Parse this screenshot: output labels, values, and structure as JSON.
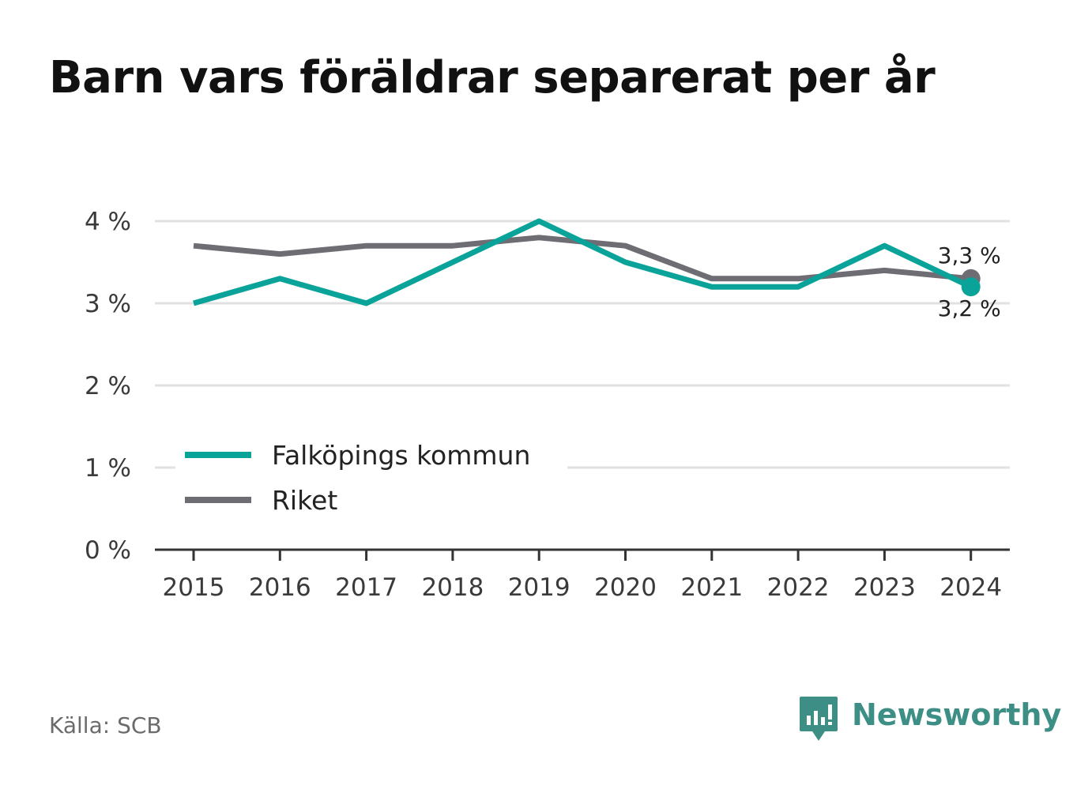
{
  "title": "Barn vars föräldrar separerat per år",
  "source": "Källa: SCB",
  "brand": {
    "name": "Newsworthy",
    "color": "#3d8f86",
    "icon": "newsworthy-logo-icon"
  },
  "colors": {
    "falkoping": "#0aa39a",
    "riket": "#6e6d73",
    "grid": "#e1e1e1",
    "axis": "#333333"
  },
  "chart_data": {
    "type": "line",
    "title": "Barn vars föräldrar separerat per år",
    "x": [
      "2015",
      "2016",
      "2017",
      "2018",
      "2019",
      "2020",
      "2021",
      "2022",
      "2023",
      "2024"
    ],
    "y_ticks": [
      "0 %",
      "1 %",
      "2 %",
      "3 %",
      "4 %"
    ],
    "ylim": [
      0,
      4
    ],
    "grid": true,
    "legend_position": "bottom-left",
    "series": [
      {
        "name": "Falköpings kommun",
        "color": "#0aa39a",
        "values": [
          3.0,
          3.3,
          3.0,
          3.5,
          4.0,
          3.5,
          3.2,
          3.2,
          3.7,
          3.2
        ],
        "end_label": "3,2 %"
      },
      {
        "name": "Riket",
        "color": "#6e6d73",
        "values": [
          3.7,
          3.6,
          3.7,
          3.7,
          3.8,
          3.7,
          3.3,
          3.3,
          3.4,
          3.3
        ],
        "end_label": "3,3 %"
      }
    ]
  }
}
